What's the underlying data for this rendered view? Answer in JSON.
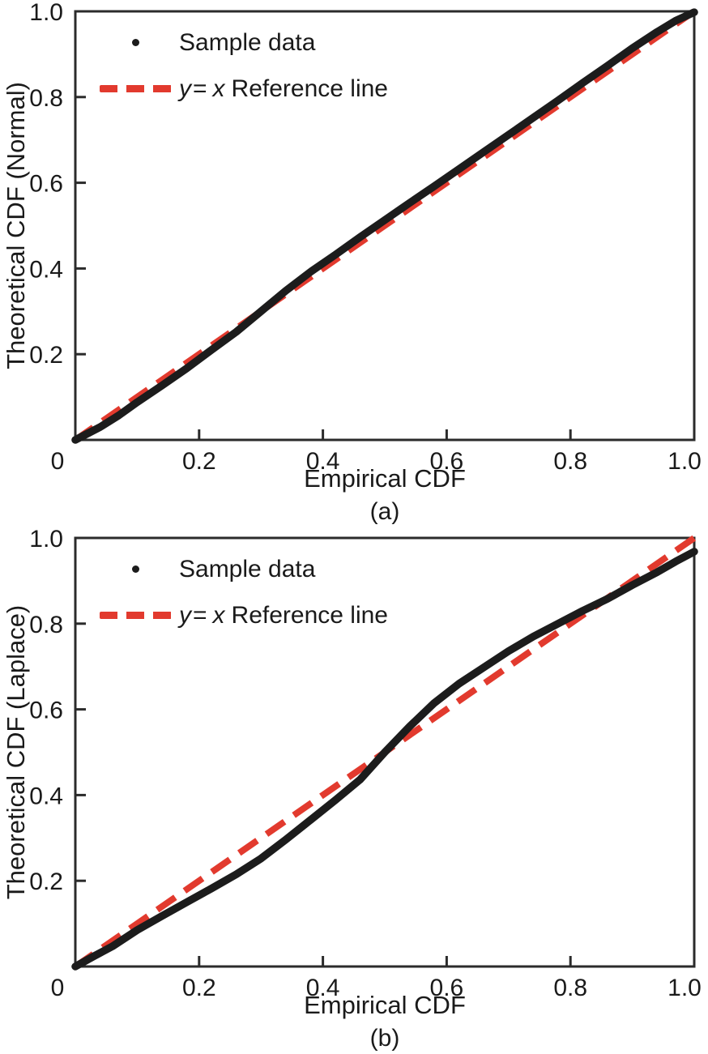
{
  "figure": {
    "background": "#ffffff",
    "axis_color": "#2b2b2b",
    "text_color": "#1a1a1a",
    "accent_red": "#e23a2e",
    "sample_color": "#1c1c1c"
  },
  "legend": {
    "sample_label": "Sample data",
    "ref_y": "y",
    "ref_eq": "=",
    "ref_x": "x",
    "ref_rest": "Reference line"
  },
  "chart_data": [
    {
      "type": "scatter",
      "panel_label": "(a)",
      "xlabel": "Empirical CDF",
      "ylabel": "Theoretical CDF (Normal)",
      "xlim": [
        0,
        1
      ],
      "ylim": [
        0,
        1
      ],
      "grid": false,
      "legend_position": "upper-left-inside",
      "legend_entries": [
        "Sample data",
        "y = x Reference line"
      ],
      "xtick_values": [
        0,
        0.2,
        0.4,
        0.6,
        0.8,
        1.0
      ],
      "xtick_labels": [
        "0",
        "0.2",
        "0.4",
        "0.6",
        "0.8",
        "1.0"
      ],
      "ytick_values": [
        0.2,
        0.4,
        0.6,
        0.8,
        1.0
      ],
      "ytick_labels": [
        "0.2",
        "0.4",
        "0.6",
        "0.8",
        "1.0"
      ],
      "series": [
        {
          "name": "Sample data",
          "style": "dense-dots",
          "color": "#1c1c1c",
          "points": [
            [
              0.0,
              0.0
            ],
            [
              0.04,
              0.03
            ],
            [
              0.07,
              0.057
            ],
            [
              0.1,
              0.088
            ],
            [
              0.14,
              0.127
            ],
            [
              0.18,
              0.167
            ],
            [
              0.22,
              0.21
            ],
            [
              0.26,
              0.252
            ],
            [
              0.3,
              0.3
            ],
            [
              0.34,
              0.348
            ],
            [
              0.38,
              0.392
            ],
            [
              0.42,
              0.432
            ],
            [
              0.46,
              0.473
            ],
            [
              0.5,
              0.513
            ],
            [
              0.54,
              0.553
            ],
            [
              0.58,
              0.592
            ],
            [
              0.62,
              0.632
            ],
            [
              0.66,
              0.672
            ],
            [
              0.7,
              0.712
            ],
            [
              0.74,
              0.752
            ],
            [
              0.78,
              0.792
            ],
            [
              0.82,
              0.833
            ],
            [
              0.86,
              0.873
            ],
            [
              0.9,
              0.914
            ],
            [
              0.94,
              0.952
            ],
            [
              0.97,
              0.978
            ],
            [
              1.0,
              0.998
            ]
          ]
        },
        {
          "name": "y = x Reference line",
          "style": "dashed-line",
          "color": "#e23a2e",
          "points": [
            [
              0,
              0
            ],
            [
              1,
              1
            ]
          ]
        }
      ]
    },
    {
      "type": "scatter",
      "panel_label": "(b)",
      "xlabel": "Empirical CDF",
      "ylabel": "Theoretical CDF (Laplace)",
      "xlim": [
        0,
        1
      ],
      "ylim": [
        0,
        1
      ],
      "grid": false,
      "legend_position": "upper-left-inside",
      "legend_entries": [
        "Sample data",
        "y = x Reference line"
      ],
      "xtick_values": [
        0,
        0.2,
        0.4,
        0.6,
        0.8,
        1.0
      ],
      "xtick_labels": [
        "0",
        "0.2",
        "0.4",
        "0.6",
        "0.8",
        "1.0"
      ],
      "ytick_values": [
        0.2,
        0.4,
        0.6,
        0.8,
        1.0
      ],
      "ytick_labels": [
        "0.2",
        "0.4",
        "0.6",
        "0.8",
        "1.0"
      ],
      "series": [
        {
          "name": "Sample data",
          "style": "dense-dots",
          "color": "#1c1c1c",
          "points": [
            [
              0.0,
              0.0
            ],
            [
              0.03,
              0.024
            ],
            [
              0.06,
              0.047
            ],
            [
              0.1,
              0.085
            ],
            [
              0.14,
              0.118
            ],
            [
              0.18,
              0.15
            ],
            [
              0.22,
              0.182
            ],
            [
              0.26,
              0.215
            ],
            [
              0.3,
              0.252
            ],
            [
              0.34,
              0.296
            ],
            [
              0.38,
              0.342
            ],
            [
              0.42,
              0.388
            ],
            [
              0.46,
              0.436
            ],
            [
              0.5,
              0.5
            ],
            [
              0.54,
              0.56
            ],
            [
              0.58,
              0.615
            ],
            [
              0.62,
              0.66
            ],
            [
              0.66,
              0.698
            ],
            [
              0.7,
              0.736
            ],
            [
              0.74,
              0.77
            ],
            [
              0.78,
              0.8
            ],
            [
              0.82,
              0.83
            ],
            [
              0.86,
              0.858
            ],
            [
              0.9,
              0.89
            ],
            [
              0.94,
              0.92
            ],
            [
              0.97,
              0.945
            ],
            [
              1.0,
              0.968
            ]
          ]
        },
        {
          "name": "y = x Reference line",
          "style": "dashed-line",
          "color": "#e23a2e",
          "points": [
            [
              0,
              0
            ],
            [
              1,
              1
            ]
          ]
        }
      ]
    }
  ]
}
